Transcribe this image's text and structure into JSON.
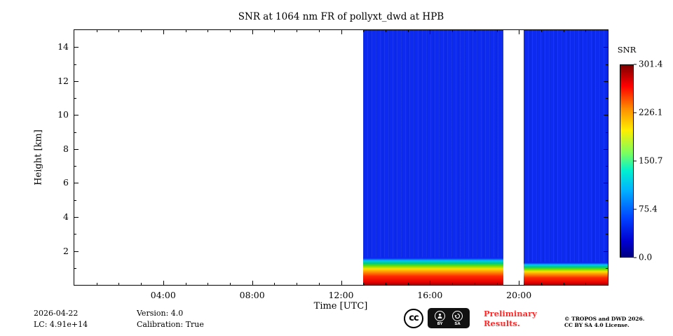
{
  "chart_data": {
    "type": "heatmap",
    "title": "SNR at 1064 nm FR of pollyxt_dwd at HPB",
    "xlabel": "Time [UTC]",
    "ylabel": "Height [km]",
    "x_range_hours": [
      0,
      24
    ],
    "y_range_km": [
      0,
      15
    ],
    "x_major_ticks": [
      {
        "hour": 4,
        "label": "04:00"
      },
      {
        "hour": 8,
        "label": "08:00"
      },
      {
        "hour": 12,
        "label": "12:00"
      },
      {
        "hour": 16,
        "label": "16:00"
      },
      {
        "hour": 20,
        "label": "20:00"
      }
    ],
    "x_minor_tick_every_hours": 1,
    "y_major_ticks": [
      {
        "km": 2,
        "label": "2"
      },
      {
        "km": 4,
        "label": "4"
      },
      {
        "km": 6,
        "label": "6"
      },
      {
        "km": 8,
        "label": "8"
      },
      {
        "km": 10,
        "label": "10"
      },
      {
        "km": 12,
        "label": "12"
      },
      {
        "km": 14,
        "label": "14"
      }
    ],
    "y_minor_tick_every_km": 1,
    "colorbar": {
      "label": "SNR",
      "min": 0.0,
      "max": 301.4,
      "colormap": "jet",
      "ticks": [
        {
          "value": 301.4,
          "label": "301.4"
        },
        {
          "value": 226.1,
          "label": "226.1"
        },
        {
          "value": 150.7,
          "label": "150.7"
        },
        {
          "value": 75.4,
          "label": "75.4"
        },
        {
          "value": 0.0,
          "label": "0.0"
        }
      ]
    },
    "data_coverage": {
      "segments": [
        {
          "start_hour": 13.0,
          "end_hour": 19.3,
          "band_top_km": 1.7,
          "description": "lidar data present: high SNR (red/orange/yellow/green) below ~1.7 km, low SNR (blue) above"
        },
        {
          "start_hour": 20.2,
          "end_hour": 24.0,
          "band_top_km": 1.4,
          "description": "lidar data present: high SNR band below ~1.4 km, low SNR (blue) above"
        }
      ],
      "no_data_hours": [
        [
          0.0,
          13.0
        ],
        [
          19.3,
          20.2
        ]
      ]
    }
  },
  "footer": {
    "date": "2026-04-22",
    "lc_label": "LC: 4.91e+14",
    "version_label": "Version: 4.0",
    "calibration_label": "Calibration: True",
    "preliminary": "Preliminary Results.",
    "copyright_line1": "© TROPOS and DWD 2026.",
    "copyright_line2": "CC BY SA 4.0 License.",
    "cc_badge": {
      "cc": "cc",
      "by": "BY",
      "sa": "SA"
    }
  },
  "colors": {
    "low_snr_blue": "#0c2af0",
    "preliminary_red": "#ff2a2a",
    "axis": "#000000"
  }
}
